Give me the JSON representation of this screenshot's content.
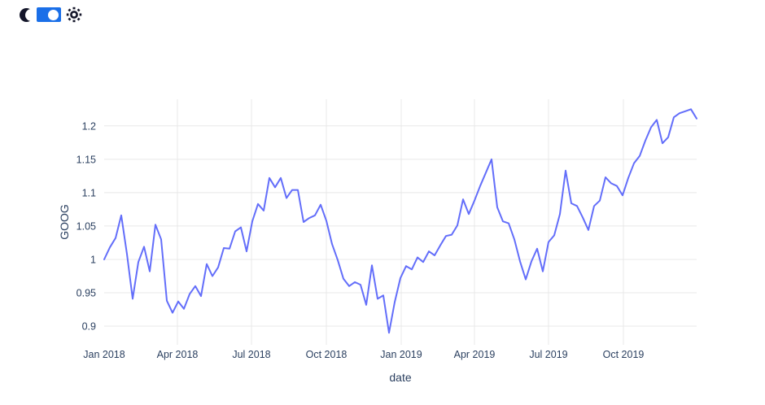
{
  "page": {
    "background": "#ffffff"
  },
  "colors": {
    "accent_blue": "#1a6fe8",
    "icon_dark": "#14162a",
    "grid": "#e8e8e8",
    "text": "#2a3f5f",
    "line": "#636efa",
    "background": "#ffffff"
  },
  "header": {
    "icons": [
      "moon-icon",
      "sun-icon"
    ],
    "theme_toggle": {
      "state": "on",
      "knob_side": "right"
    }
  },
  "chart_data": {
    "type": "line",
    "title": "",
    "xlabel": "date",
    "ylabel": "GOOG",
    "grid": true,
    "legend": "none",
    "xlim": [
      "2018-01-01",
      "2019-12-30"
    ],
    "ylim": [
      0.872,
      1.24
    ],
    "yticks": [
      0.9,
      0.95,
      1.0,
      1.05,
      1.1,
      1.15,
      1.2
    ],
    "ytick_labels": [
      "0.9",
      "0.95",
      "1",
      "1.05",
      "1.1",
      "1.15",
      "1.2"
    ],
    "xticks": [
      {
        "date": "2018-01-01",
        "label": "Jan 2018",
        "grid": false
      },
      {
        "date": "2018-04-01",
        "label": "Apr 2018",
        "grid": true
      },
      {
        "date": "2018-07-01",
        "label": "Jul 2018",
        "grid": true
      },
      {
        "date": "2018-10-01",
        "label": "Oct 2018",
        "grid": true
      },
      {
        "date": "2019-01-01",
        "label": "Jan 2019",
        "grid": true
      },
      {
        "date": "2019-04-01",
        "label": "Apr 2019",
        "grid": true
      },
      {
        "date": "2019-07-01",
        "label": "Jul 2019",
        "grid": true
      },
      {
        "date": "2019-10-01",
        "label": "Oct 2019",
        "grid": true
      }
    ],
    "series": [
      {
        "name": "GOOG",
        "color": "#636efa",
        "x": [
          "2018-01-01",
          "2018-01-08",
          "2018-01-15",
          "2018-01-22",
          "2018-01-29",
          "2018-02-05",
          "2018-02-12",
          "2018-02-19",
          "2018-02-26",
          "2018-03-05",
          "2018-03-12",
          "2018-03-19",
          "2018-03-26",
          "2018-04-02",
          "2018-04-09",
          "2018-04-16",
          "2018-04-23",
          "2018-04-30",
          "2018-05-07",
          "2018-05-14",
          "2018-05-21",
          "2018-05-28",
          "2018-06-04",
          "2018-06-11",
          "2018-06-18",
          "2018-06-25",
          "2018-07-02",
          "2018-07-09",
          "2018-07-16",
          "2018-07-23",
          "2018-07-30",
          "2018-08-06",
          "2018-08-13",
          "2018-08-20",
          "2018-08-27",
          "2018-09-03",
          "2018-09-10",
          "2018-09-17",
          "2018-09-24",
          "2018-10-01",
          "2018-10-08",
          "2018-10-15",
          "2018-10-22",
          "2018-10-29",
          "2018-11-05",
          "2018-11-12",
          "2018-11-19",
          "2018-11-26",
          "2018-12-03",
          "2018-12-10",
          "2018-12-17",
          "2018-12-24",
          "2018-12-31",
          "2019-01-07",
          "2019-01-14",
          "2019-01-21",
          "2019-01-28",
          "2019-02-04",
          "2019-02-11",
          "2019-02-18",
          "2019-02-25",
          "2019-03-04",
          "2019-03-11",
          "2019-03-18",
          "2019-03-25",
          "2019-04-01",
          "2019-04-08",
          "2019-04-15",
          "2019-04-22",
          "2019-04-29",
          "2019-05-06",
          "2019-05-13",
          "2019-05-20",
          "2019-05-27",
          "2019-06-03",
          "2019-06-10",
          "2019-06-17",
          "2019-06-24",
          "2019-07-01",
          "2019-07-08",
          "2019-07-15",
          "2019-07-22",
          "2019-07-29",
          "2019-08-05",
          "2019-08-12",
          "2019-08-19",
          "2019-08-26",
          "2019-09-02",
          "2019-09-09",
          "2019-09-16",
          "2019-09-23",
          "2019-09-30",
          "2019-10-07",
          "2019-10-14",
          "2019-10-21",
          "2019-10-28",
          "2019-11-04",
          "2019-11-11",
          "2019-11-18",
          "2019-11-25",
          "2019-12-02",
          "2019-12-09",
          "2019-12-16",
          "2019-12-23",
          "2019-12-30"
        ],
        "y": [
          1.0,
          1.018,
          1.032,
          1.066,
          1.008,
          0.941,
          0.996,
          1.019,
          0.982,
          1.052,
          1.03,
          0.938,
          0.92,
          0.937,
          0.926,
          0.948,
          0.96,
          0.945,
          0.993,
          0.975,
          0.988,
          1.017,
          1.016,
          1.042,
          1.048,
          1.012,
          1.057,
          1.083,
          1.073,
          1.122,
          1.108,
          1.122,
          1.092,
          1.104,
          1.104,
          1.056,
          1.062,
          1.066,
          1.082,
          1.058,
          1.023,
          0.999,
          0.971,
          0.96,
          0.966,
          0.962,
          0.932,
          0.991,
          0.941,
          0.946,
          0.89,
          0.936,
          0.972,
          0.99,
          0.985,
          1.003,
          0.996,
          1.012,
          1.006,
          1.021,
          1.035,
          1.037,
          1.051,
          1.09,
          1.068,
          1.088,
          1.11,
          1.13,
          1.15,
          1.078,
          1.057,
          1.054,
          1.03,
          0.997,
          0.97,
          0.997,
          1.016,
          0.982,
          1.026,
          1.036,
          1.068,
          1.133,
          1.084,
          1.08,
          1.063,
          1.044,
          1.08,
          1.088,
          1.123,
          1.114,
          1.11,
          1.096,
          1.122,
          1.144,
          1.155,
          1.178,
          1.198,
          1.209,
          1.174,
          1.183,
          1.213,
          1.219,
          1.222,
          1.225,
          1.211
        ]
      }
    ]
  }
}
